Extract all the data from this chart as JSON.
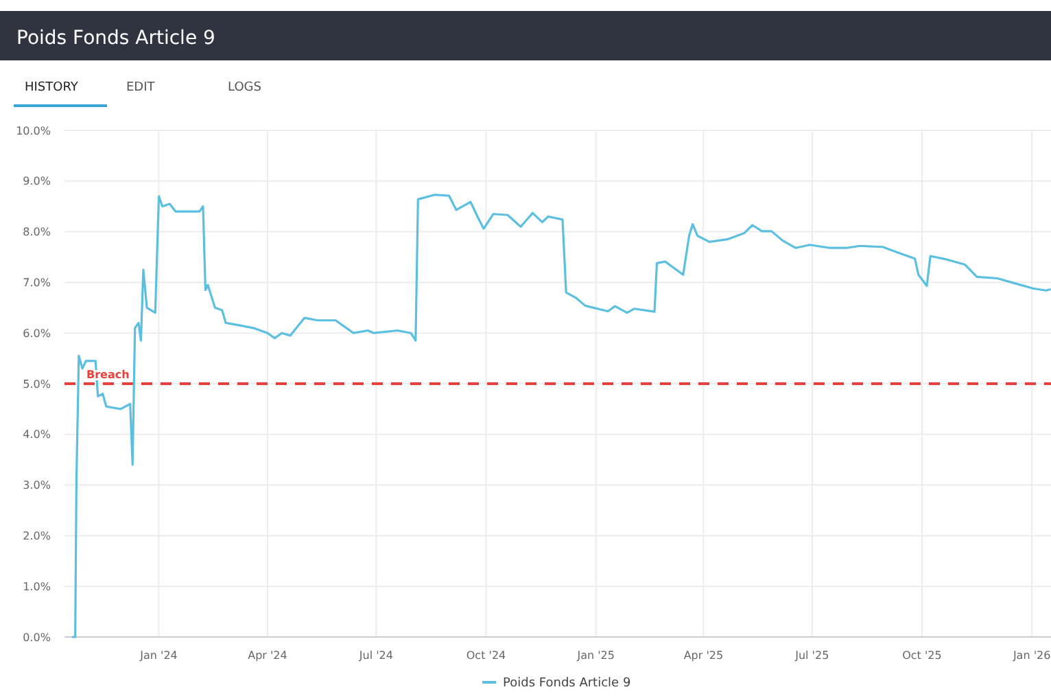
{
  "chart_data": {
    "type": "line",
    "title": "Poids Fonds Article 9",
    "annotations": [
      "HISTORY",
      "EDIT",
      "LOGS"
    ],
    "x": [
      "2023-10-21",
      "2023-10-23",
      "2023-10-24",
      "2023-10-26",
      "2023-10-29",
      "2023-11-01",
      "2023-11-09",
      "2023-11-11",
      "2023-11-15",
      "2023-11-18",
      "2023-11-30",
      "2023-12-08",
      "2023-12-10",
      "2023-12-12",
      "2023-12-15",
      "2023-12-17",
      "2023-12-19",
      "2023-12-22",
      "2023-12-29",
      "2024-01-01",
      "2024-01-04",
      "2024-01-10",
      "2024-01-15",
      "2024-02-04",
      "2024-02-07",
      "2024-02-09",
      "2024-02-11",
      "2024-02-17",
      "2024-02-23",
      "2024-02-26",
      "2024-03-09",
      "2024-03-20",
      "2024-04-01",
      "2024-04-07",
      "2024-04-13",
      "2024-04-20",
      "2024-05-02",
      "2024-05-13",
      "2024-05-28",
      "2024-06-12",
      "2024-06-24",
      "2024-06-29",
      "2024-07-19",
      "2024-07-30",
      "2024-08-03",
      "2024-08-05",
      "2024-08-19",
      "2024-08-31",
      "2024-09-06",
      "2024-09-18",
      "2024-09-24",
      "2024-09-29",
      "2024-10-07",
      "2024-10-19",
      "2024-10-30",
      "2024-11-09",
      "2024-11-17",
      "2024-11-22",
      "2024-12-04",
      "2024-12-07",
      "2024-12-15",
      "2024-12-23",
      "2025-01-11",
      "2025-01-17",
      "2025-01-27",
      "2025-02-02",
      "2025-02-19",
      "2025-02-21",
      "2025-02-28",
      "2025-03-15",
      "2025-03-20",
      "2025-03-23",
      "2025-03-27",
      "2025-04-06",
      "2025-04-21",
      "2025-05-05",
      "2025-05-12",
      "2025-05-20",
      "2025-05-28",
      "2025-06-06",
      "2025-06-17",
      "2025-06-29",
      "2025-07-16",
      "2025-07-30",
      "2025-08-10",
      "2025-08-29",
      "2025-09-14",
      "2025-09-25",
      "2025-09-28",
      "2025-10-05",
      "2025-10-08",
      "2025-10-22",
      "2025-11-06",
      "2025-11-16",
      "2025-12-03",
      "2025-12-18",
      "2026-01-02",
      "2026-01-13",
      "2026-01-16"
    ],
    "series": [
      {
        "name": "Poids Fonds Article 9",
        "color": "#5bbfe0",
        "values": [
          0,
          0,
          3.1,
          5.55,
          5.3,
          5.45,
          5.45,
          4.75,
          4.8,
          4.55,
          4.5,
          4.6,
          3.4,
          6.1,
          6.2,
          5.85,
          7.25,
          6.5,
          6.4,
          8.7,
          8.5,
          8.55,
          8.4,
          8.4,
          8.5,
          6.85,
          6.95,
          6.5,
          6.45,
          6.2,
          6.15,
          6.1,
          6.0,
          5.9,
          6.0,
          5.95,
          6.3,
          6.25,
          6.25,
          6.0,
          6.05,
          6.0,
          6.05,
          6.0,
          5.85,
          8.64,
          8.73,
          8.71,
          8.43,
          8.59,
          8.29,
          8.06,
          8.35,
          8.33,
          8.1,
          8.37,
          8.19,
          8.3,
          8.24,
          6.8,
          6.7,
          6.54,
          6.43,
          6.53,
          6.4,
          6.48,
          6.42,
          7.38,
          7.41,
          7.15,
          7.92,
          8.15,
          7.92,
          7.8,
          7.85,
          7.97,
          8.13,
          8.01,
          8.01,
          7.83,
          7.68,
          7.74,
          7.68,
          7.68,
          7.72,
          7.7,
          7.56,
          7.47,
          7.15,
          6.93,
          7.52,
          7.45,
          7.35,
          7.11,
          7.08,
          6.98,
          6.88,
          6.84,
          6.86
        ]
      }
    ],
    "xlim": [
      "2023-10-14",
      "2026-01-17"
    ],
    "xticks": [
      {
        "value": "2024-01-01",
        "label": "Jan '24"
      },
      {
        "value": "2024-04-01",
        "label": "Apr '24"
      },
      {
        "value": "2024-07-01",
        "label": "Jul '24"
      },
      {
        "value": "2024-10-01",
        "label": "Oct '24"
      },
      {
        "value": "2025-01-01",
        "label": "Jan '25"
      },
      {
        "value": "2025-04-01",
        "label": "Apr '25"
      },
      {
        "value": "2025-07-01",
        "label": "Jul '25"
      },
      {
        "value": "2025-10-01",
        "label": "Oct '25"
      },
      {
        "value": "2026-01-01",
        "label": "Jan '26"
      }
    ],
    "ylim": [
      0,
      10
    ],
    "yticks": [
      {
        "value": 0,
        "label": "0.0%"
      },
      {
        "value": 1,
        "label": "1.0%"
      },
      {
        "value": 2,
        "label": "2.0%"
      },
      {
        "value": 3,
        "label": "3.0%"
      },
      {
        "value": 4,
        "label": "4.0%"
      },
      {
        "value": 5,
        "label": "5.0%"
      },
      {
        "value": 6,
        "label": "6.0%"
      },
      {
        "value": 7,
        "label": "7.0%"
      },
      {
        "value": 8,
        "label": "8.0%"
      },
      {
        "value": 9,
        "label": "9.0%"
      },
      {
        "value": 10,
        "label": "10.0%"
      }
    ],
    "ref_lines": [
      {
        "axis": "y",
        "value": 5,
        "label": "Breach",
        "color": "#e8413c",
        "line_style": "dashed"
      }
    ],
    "grid": true,
    "legend": "bottom",
    "marker": "none",
    "line_style": "solid"
  }
}
